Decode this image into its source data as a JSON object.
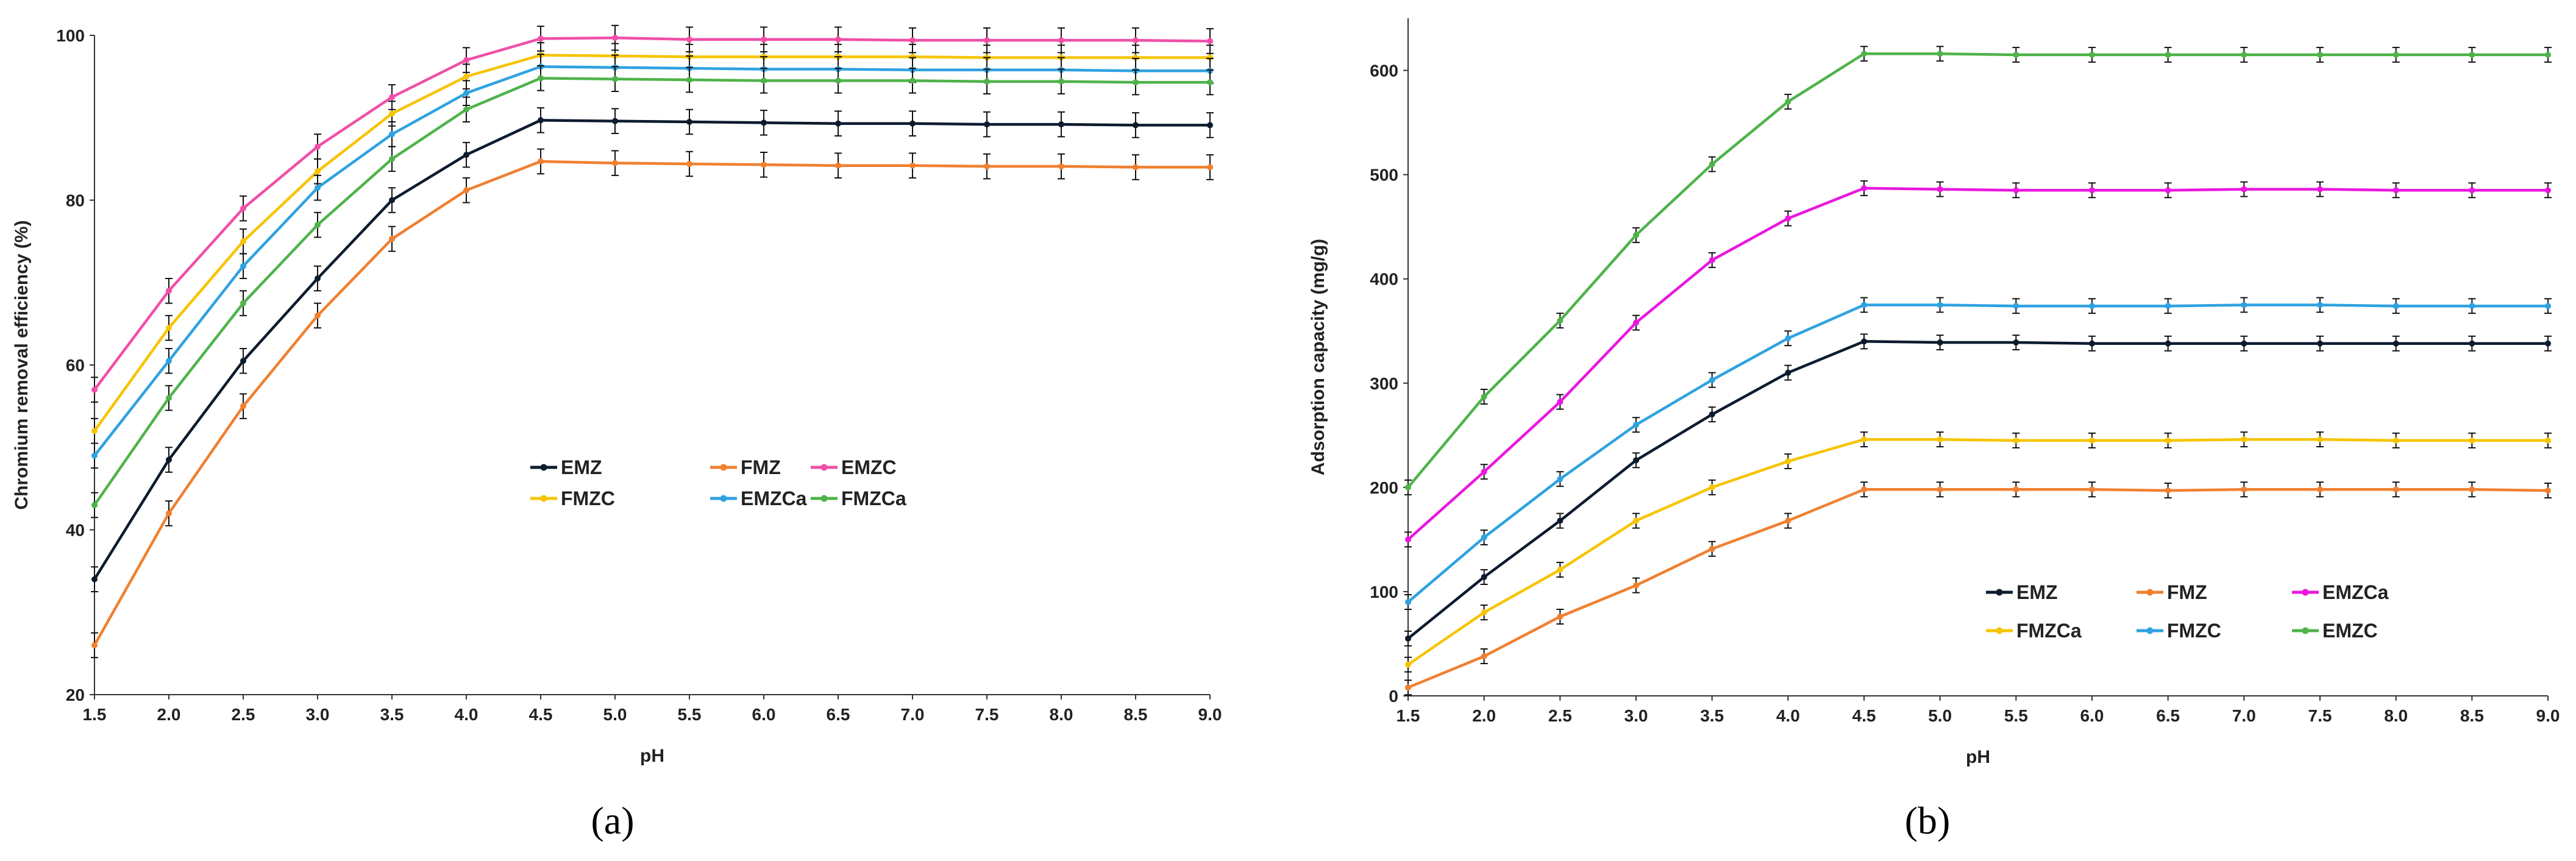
{
  "colors": {
    "EMZ": "#0d1b2e",
    "FMZ": "#f08030",
    "EMZC_pink": "#f04fa8",
    "FMZC_yellow": "#f7c400",
    "blue": "#2fa2e0",
    "green": "#4fb34a",
    "magenta": "#ea17e0"
  },
  "chart_data": [
    {
      "type": "line",
      "panel_label": "(a)",
      "title": "",
      "xlabel": "pH",
      "ylabel": "Chromium removal efficiency (%)",
      "xlim": [
        1.5,
        9.0
      ],
      "ylim": [
        20,
        100
      ],
      "x": [
        1.5,
        2.0,
        2.5,
        3.0,
        3.5,
        4.0,
        4.5,
        5.0,
        5.5,
        6.0,
        6.5,
        7.0,
        7.5,
        8.0,
        8.5,
        9.0
      ],
      "x_tick_labels": [
        "1.5",
        "2.0",
        "2.5",
        "3.0",
        "3.5",
        "4.0",
        "4.5",
        "5.0",
        "5.5",
        "6.0",
        "6.5",
        "7.0",
        "7.5",
        "8.0",
        "8.5",
        "9.0"
      ],
      "y_tick_labels": [
        "20",
        "40",
        "60",
        "80",
        "100"
      ],
      "y_ticks": [
        20,
        40,
        60,
        80,
        100
      ],
      "error": 1.5,
      "legend_position": "center",
      "series": [
        {
          "name": "EMZ",
          "color_key": "EMZ",
          "values": [
            34,
            48.5,
            60.5,
            70.5,
            80,
            85.5,
            89.7,
            89.6,
            89.5,
            89.4,
            89.3,
            89.3,
            89.2,
            89.2,
            89.1,
            89.1
          ]
        },
        {
          "name": "FMZ",
          "color_key": "FMZ",
          "values": [
            26,
            42,
            55,
            66,
            75.3,
            81.2,
            84.7,
            84.5,
            84.4,
            84.3,
            84.2,
            84.2,
            84.1,
            84.1,
            84.0,
            84.0
          ]
        },
        {
          "name": "EMZC",
          "color_key": "EMZC_pink",
          "values": [
            57,
            69,
            79,
            86.5,
            92.5,
            97,
            99.6,
            99.7,
            99.5,
            99.5,
            99.5,
            99.4,
            99.4,
            99.4,
            99.4,
            99.3
          ]
        },
        {
          "name": "FMZC",
          "color_key": "FMZC_yellow",
          "values": [
            52,
            64.5,
            75,
            83.5,
            90.5,
            95,
            97.6,
            97.5,
            97.4,
            97.4,
            97.4,
            97.4,
            97.3,
            97.3,
            97.3,
            97.3
          ]
        },
        {
          "name": "EMZCa",
          "color_key": "blue",
          "values": [
            49,
            60.5,
            72,
            81.5,
            88,
            93,
            96.2,
            96.1,
            96.0,
            95.9,
            95.9,
            95.8,
            95.8,
            95.8,
            95.7,
            95.7
          ]
        },
        {
          "name": "FMZCa",
          "color_key": "green",
          "values": [
            43,
            56,
            67.5,
            77,
            85,
            91,
            94.8,
            94.7,
            94.6,
            94.5,
            94.5,
            94.5,
            94.4,
            94.4,
            94.3,
            94.3
          ]
        }
      ],
      "legend_order": [
        "EMZ",
        "FMZ",
        "EMZC",
        "FMZC",
        "EMZCa",
        "FMZCa"
      ]
    },
    {
      "type": "line",
      "panel_label": "(b)",
      "title": "",
      "xlabel": "pH",
      "ylabel": "Adsorption capacity (mg/g)",
      "xlim": [
        1.5,
        9.0
      ],
      "ylim": [
        0,
        650
      ],
      "x": [
        1.5,
        2.0,
        2.5,
        3.0,
        3.5,
        4.0,
        4.5,
        5.0,
        5.5,
        6.0,
        6.5,
        7.0,
        7.5,
        8.0,
        8.5,
        9.0
      ],
      "x_tick_labels": [
        "1.5",
        "2.0",
        "2.5",
        "3.0",
        "3.5",
        "4.0",
        "4.5",
        "5.0",
        "5.5",
        "6.0",
        "6.5",
        "7.0",
        "7.5",
        "8.0",
        "8.5",
        "9.0"
      ],
      "y_tick_labels": [
        "0",
        "100",
        "200",
        "300",
        "400",
        "500",
        "600"
      ],
      "y_ticks": [
        0,
        100,
        200,
        300,
        400,
        500,
        600
      ],
      "error": 7,
      "legend_position": "bottom-right",
      "series": [
        {
          "name": "EMZ",
          "color_key": "EMZ",
          "values": [
            55,
            114,
            168,
            226,
            270,
            310,
            340,
            339,
            339,
            338,
            338,
            338,
            338,
            338,
            338,
            338
          ]
        },
        {
          "name": "FMZ",
          "color_key": "FMZ",
          "values": [
            8,
            38,
            76,
            106,
            141,
            168,
            198,
            198,
            198,
            198,
            197,
            198,
            198,
            198,
            198,
            197
          ]
        },
        {
          "name": "EMZCa",
          "color_key": "magenta",
          "values": [
            150,
            215,
            282,
            358,
            418,
            458,
            487,
            486,
            485,
            485,
            485,
            486,
            486,
            485,
            485,
            485
          ]
        },
        {
          "name": "FMZCa",
          "color_key": "FMZC_yellow",
          "values": [
            30,
            80,
            121,
            168,
            200,
            225,
            246,
            246,
            245,
            245,
            245,
            246,
            246,
            245,
            245,
            245
          ]
        },
        {
          "name": "FMZC",
          "color_key": "blue",
          "values": [
            90,
            152,
            208,
            260,
            303,
            343,
            375,
            375,
            374,
            374,
            374,
            375,
            375,
            374,
            374,
            374
          ]
        },
        {
          "name": "EMZC",
          "color_key": "green",
          "values": [
            200,
            287,
            360,
            442,
            510,
            570,
            616,
            616,
            615,
            615,
            615,
            615,
            615,
            615,
            615,
            615
          ]
        }
      ],
      "legend_order": [
        "EMZ",
        "FMZ",
        "EMZCa",
        "FMZCa",
        "FMZC",
        "EMZC"
      ]
    }
  ]
}
